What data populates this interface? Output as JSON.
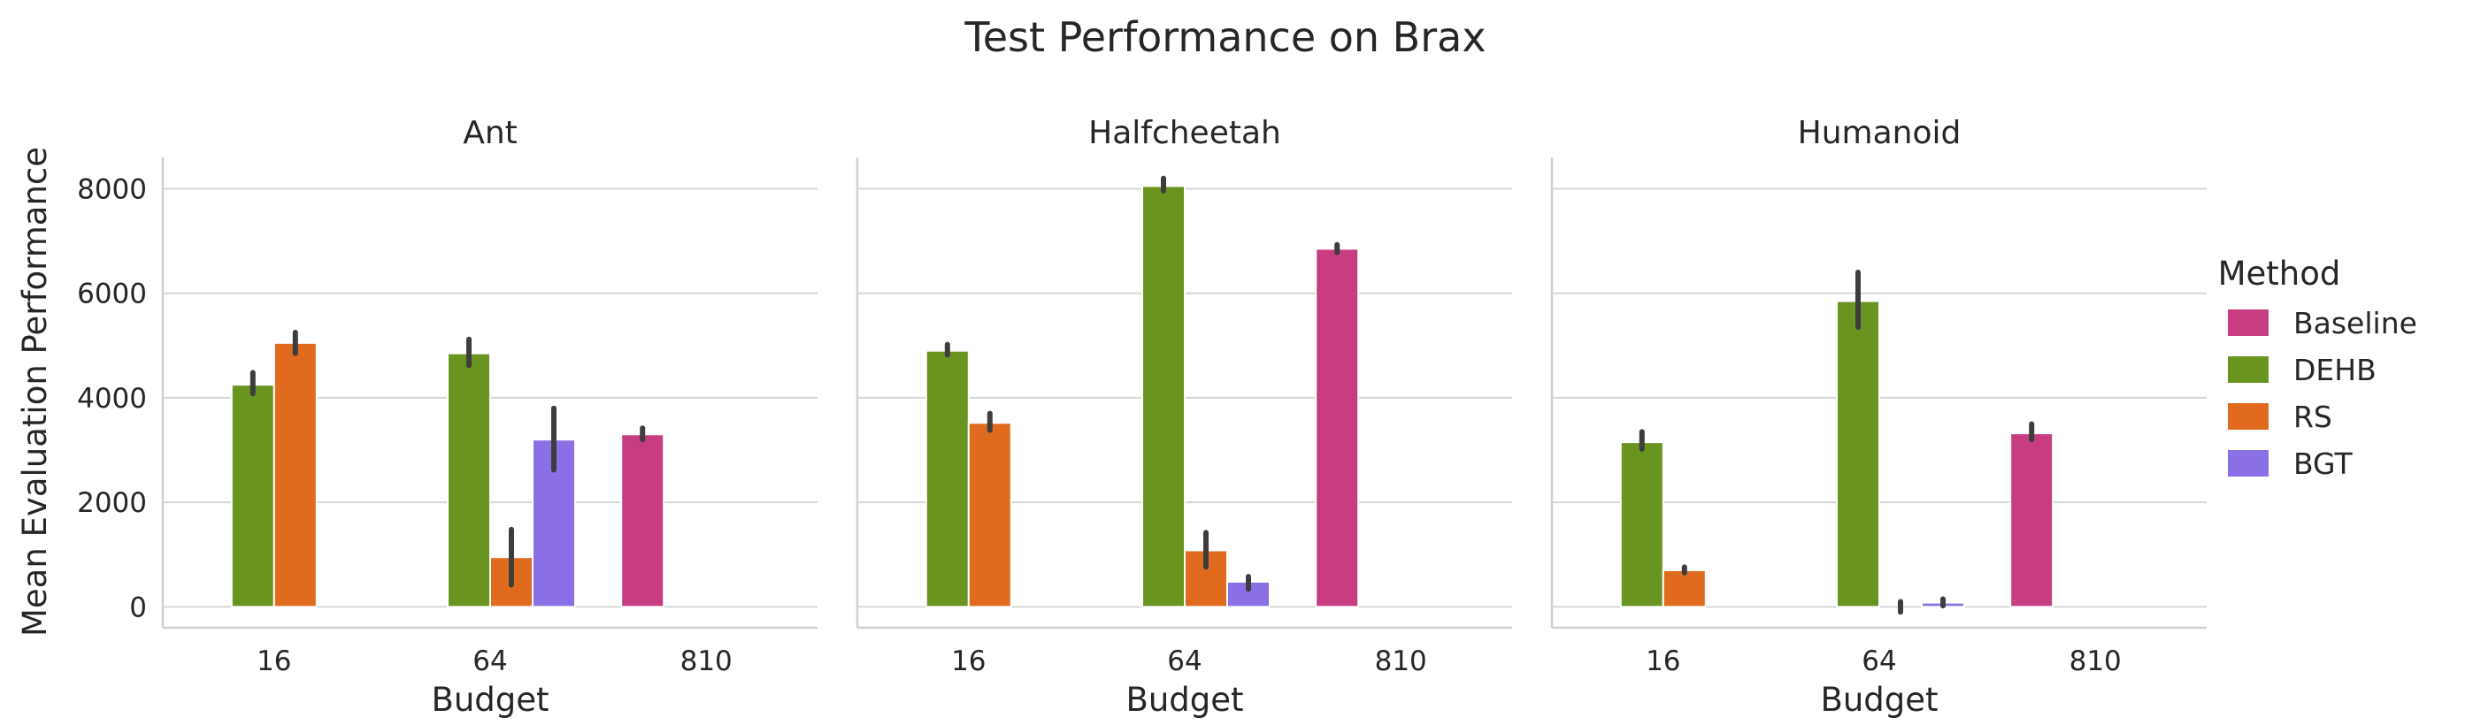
{
  "chart_data": {
    "type": "bar",
    "title": "Test Performance on Brax",
    "xlabel": "Budget",
    "ylabel": "Mean Evaluation Performance",
    "ylim": [
      -400,
      8600
    ],
    "yticks": [
      0,
      2000,
      4000,
      6000,
      8000
    ],
    "grid": "horizontal",
    "legend": {
      "title": "Method",
      "placement": "right",
      "entries": [
        "Baseline",
        "DEHB",
        "RS",
        "BGT"
      ]
    },
    "colors": {
      "Baseline": "#C83D81",
      "DEHB": "#6A9420",
      "RS": "#E06B1E",
      "BGT": "#8A6FE6"
    },
    "categories": [
      "16",
      "64",
      "810"
    ],
    "panels": [
      {
        "title": "Ant",
        "series": [
          {
            "name": "Baseline",
            "values": [
              null,
              null,
              3300
            ],
            "err_low": [
              null,
              null,
              3200
            ],
            "err_high": [
              null,
              null,
              3420
            ]
          },
          {
            "name": "DEHB",
            "values": [
              4250,
              4850,
              null
            ],
            "err_low": [
              4080,
              4620,
              null
            ],
            "err_high": [
              4480,
              5120,
              null
            ]
          },
          {
            "name": "RS",
            "values": [
              5050,
              950,
              null
            ],
            "err_low": [
              4850,
              420,
              null
            ],
            "err_high": [
              5250,
              1480,
              null
            ]
          },
          {
            "name": "BGT",
            "values": [
              null,
              3200,
              null
            ],
            "err_low": [
              null,
              2620,
              null
            ],
            "err_high": [
              null,
              3800,
              null
            ]
          }
        ]
      },
      {
        "title": "Halfcheetah",
        "series": [
          {
            "name": "Baseline",
            "values": [
              null,
              null,
              6850
            ],
            "err_low": [
              null,
              null,
              6780
            ],
            "err_high": [
              null,
              null,
              6930
            ]
          },
          {
            "name": "DEHB",
            "values": [
              4900,
              8050,
              null
            ],
            "err_low": [
              4820,
              7960,
              null
            ],
            "err_high": [
              5020,
              8200,
              null
            ]
          },
          {
            "name": "RS",
            "values": [
              3520,
              1080,
              null
            ],
            "err_low": [
              3380,
              760,
              null
            ],
            "err_high": [
              3700,
              1420,
              null
            ]
          },
          {
            "name": "BGT",
            "values": [
              null,
              480,
              null
            ],
            "err_low": [
              null,
              340,
              null
            ],
            "err_high": [
              null,
              580,
              null
            ]
          }
        ]
      },
      {
        "title": "Humanoid",
        "series": [
          {
            "name": "Baseline",
            "values": [
              null,
              null,
              3320
            ],
            "err_low": [
              null,
              null,
              3200
            ],
            "err_high": [
              null,
              null,
              3500
            ]
          },
          {
            "name": "DEHB",
            "values": [
              3150,
              5850,
              null
            ],
            "err_low": [
              3020,
              5350,
              null
            ],
            "err_high": [
              3350,
              6400,
              null
            ]
          },
          {
            "name": "RS",
            "values": [
              700,
              0,
              null
            ],
            "err_low": [
              650,
              -100,
              null
            ],
            "err_high": [
              760,
              100,
              null
            ]
          },
          {
            "name": "BGT",
            "values": [
              null,
              80,
              null
            ],
            "err_low": [
              null,
              20,
              null
            ],
            "err_high": [
              null,
              150,
              null
            ]
          }
        ]
      }
    ]
  }
}
